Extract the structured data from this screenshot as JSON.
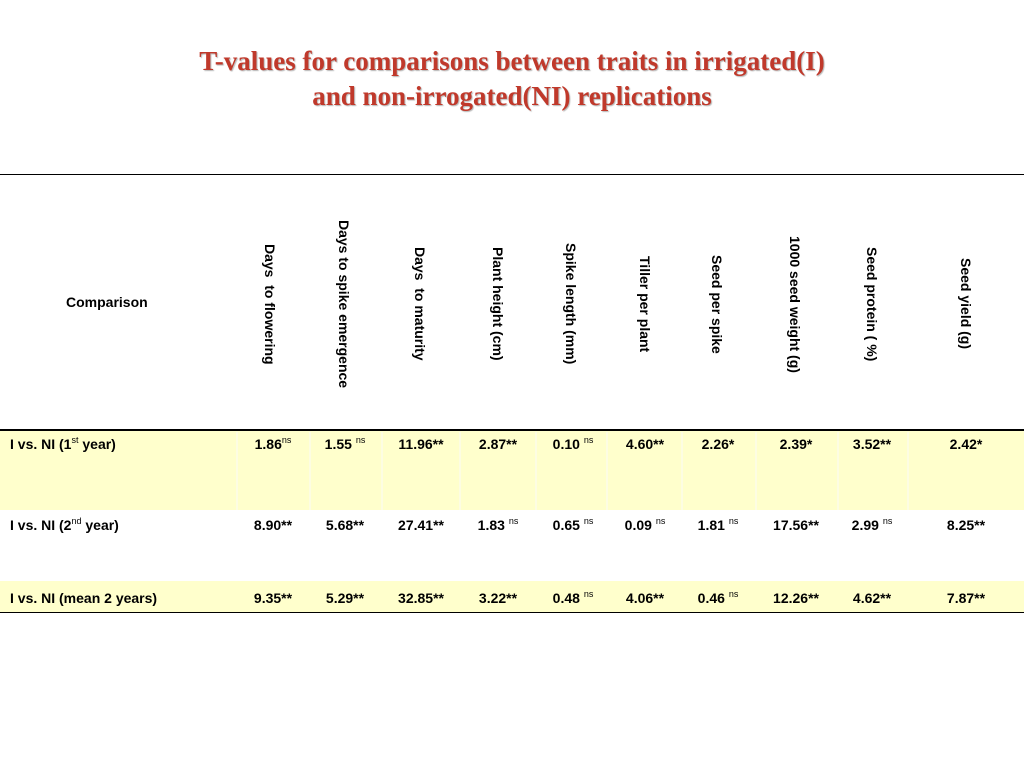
{
  "title": {
    "line1": "T-values for comparisons between traits in irrigated(I)",
    "line2": "and non-irrogated(NI) replications"
  },
  "colors": {
    "title": "#c0392b",
    "highlight_row": "#ffffcc"
  },
  "table": {
    "comparison_header": "Comparison",
    "columns": [
      "Days  to flowering",
      "Days to spike emergence",
      "Days  to maturity",
      "Plant height (cm)",
      "Spike length (mm)",
      "Tiller per plant",
      "Seed per spike",
      "1000 seed weight (g)",
      "Seed protein ( %)",
      "Seed yield (g)"
    ],
    "rows": [
      {
        "label_pre": "I vs. NI (1",
        "label_sup": "st",
        "label_post": " year)",
        "cells": [
          {
            "v": "1.86",
            "s": "ns"
          },
          {
            "v": "1.55 ",
            "s": "ns"
          },
          {
            "v": "11.96**",
            "s": ""
          },
          {
            "v": "2.87**",
            "s": ""
          },
          {
            "v": "0.10 ",
            "s": "ns"
          },
          {
            "v": "4.60**",
            "s": ""
          },
          {
            "v": "2.26*",
            "s": ""
          },
          {
            "v": "2.39*",
            "s": ""
          },
          {
            "v": "3.52**",
            "s": ""
          },
          {
            "v": "2.42*",
            "s": ""
          }
        ]
      },
      {
        "label_pre": "I vs. NI (2",
        "label_sup": "nd",
        "label_post": "  year)",
        "cells": [
          {
            "v": "8.90**",
            "s": ""
          },
          {
            "v": "5.68**",
            "s": ""
          },
          {
            "v": "27.41**",
            "s": ""
          },
          {
            "v": "1.83 ",
            "s": "ns"
          },
          {
            "v": "0.65 ",
            "s": "ns"
          },
          {
            "v": "0.09 ",
            "s": "ns"
          },
          {
            "v": "1.81 ",
            "s": "ns"
          },
          {
            "v": "17.56**",
            "s": ""
          },
          {
            "v": "2.99 ",
            "s": "ns"
          },
          {
            "v": "8.25**",
            "s": ""
          }
        ]
      },
      {
        "label_pre": "I vs. NI (mean 2 years)",
        "label_sup": "",
        "label_post": "",
        "cells": [
          {
            "v": "9.35**",
            "s": ""
          },
          {
            "v": "5.29**",
            "s": ""
          },
          {
            "v": "32.85**",
            "s": ""
          },
          {
            "v": "3.22**",
            "s": ""
          },
          {
            "v": "0.48 ",
            "s": "ns"
          },
          {
            "v": "4.06**",
            "s": ""
          },
          {
            "v": "0.46 ",
            "s": "ns"
          },
          {
            "v": "12.26**",
            "s": ""
          },
          {
            "v": "4.62**",
            "s": ""
          },
          {
            "v": "7.87**",
            "s": ""
          }
        ]
      }
    ]
  }
}
